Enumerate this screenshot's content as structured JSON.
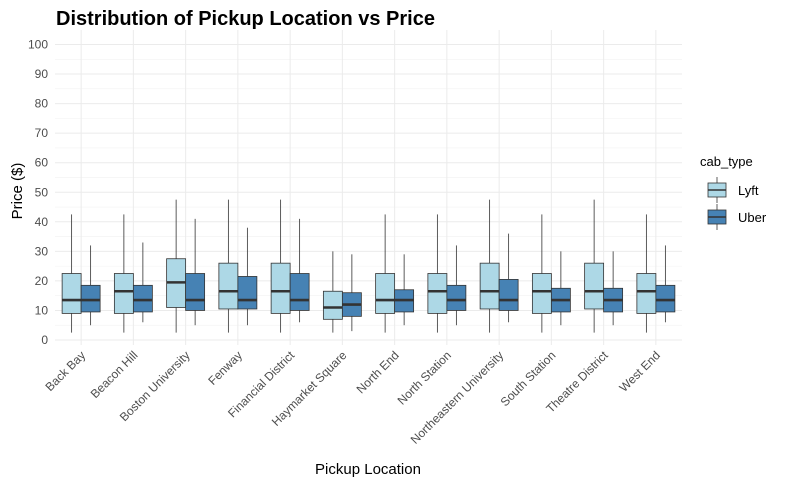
{
  "chart_data": {
    "type": "boxplot",
    "title": "Distribution of Pickup Location vs Price",
    "xlabel": "Pickup Location",
    "ylabel": "Price ($)",
    "ylim": [
      0,
      102
    ],
    "yticks": [
      0,
      10,
      20,
      30,
      40,
      50,
      60,
      70,
      80,
      90,
      100
    ],
    "grid": true,
    "legend": {
      "title": "cab_type",
      "position": "right"
    },
    "categories": [
      "Back Bay",
      "Beacon Hill",
      "Boston University",
      "Fenway",
      "Financial District",
      "Haymarket Square",
      "North End",
      "North Station",
      "Northeastern University",
      "South Station",
      "Theatre District",
      "West End"
    ],
    "series": [
      {
        "name": "Lyft",
        "color": "#add8e6",
        "boxes": [
          {
            "min": 2.5,
            "q1": 9,
            "median": 13.5,
            "q3": 22.5,
            "max": 42.5
          },
          {
            "min": 2.5,
            "q1": 9,
            "median": 16.5,
            "q3": 22.5,
            "max": 42.5
          },
          {
            "min": 2.5,
            "q1": 11,
            "median": 19.5,
            "q3": 27.5,
            "max": 47.5
          },
          {
            "min": 2.5,
            "q1": 10.5,
            "median": 16.5,
            "q3": 26,
            "max": 47.5
          },
          {
            "min": 2.5,
            "q1": 9,
            "median": 16.5,
            "q3": 26,
            "max": 47.5
          },
          {
            "min": 2.5,
            "q1": 7,
            "median": 11,
            "q3": 16.5,
            "max": 30
          },
          {
            "min": 2.5,
            "q1": 9,
            "median": 13.5,
            "q3": 22.5,
            "max": 42.5
          },
          {
            "min": 2.5,
            "q1": 9,
            "median": 16.5,
            "q3": 22.5,
            "max": 42.5
          },
          {
            "min": 2.5,
            "q1": 10.5,
            "median": 16.5,
            "q3": 26,
            "max": 47.5
          },
          {
            "min": 2.5,
            "q1": 9,
            "median": 16.5,
            "q3": 22.5,
            "max": 42.5
          },
          {
            "min": 2.5,
            "q1": 10.5,
            "median": 16.5,
            "q3": 26,
            "max": 47.5
          },
          {
            "min": 2.5,
            "q1": 9,
            "median": 16.5,
            "q3": 22.5,
            "max": 42.5
          }
        ]
      },
      {
        "name": "Uber",
        "color": "#4682b4",
        "boxes": [
          {
            "min": 5,
            "q1": 9.5,
            "median": 13.5,
            "q3": 18.5,
            "max": 32
          },
          {
            "min": 6,
            "q1": 9.5,
            "median": 13.5,
            "q3": 18.5,
            "max": 33
          },
          {
            "min": 5,
            "q1": 10,
            "median": 13.5,
            "q3": 22.5,
            "max": 41
          },
          {
            "min": 5,
            "q1": 10.5,
            "median": 13.5,
            "q3": 21.5,
            "max": 38
          },
          {
            "min": 6,
            "q1": 10,
            "median": 13.5,
            "q3": 22.5,
            "max": 41
          },
          {
            "min": 3,
            "q1": 8,
            "median": 12,
            "q3": 16,
            "max": 29
          },
          {
            "min": 5,
            "q1": 9.5,
            "median": 13.5,
            "q3": 17,
            "max": 29
          },
          {
            "min": 5,
            "q1": 10,
            "median": 13.5,
            "q3": 18.5,
            "max": 32
          },
          {
            "min": 6,
            "q1": 10,
            "median": 13.5,
            "q3": 20.5,
            "max": 36
          },
          {
            "min": 5,
            "q1": 9.5,
            "median": 13.5,
            "q3": 17.5,
            "max": 30
          },
          {
            "min": 5,
            "q1": 9.5,
            "median": 13.5,
            "q3": 17.5,
            "max": 30
          },
          {
            "min": 6,
            "q1": 9.5,
            "median": 13.5,
            "q3": 18.5,
            "max": 32
          }
        ]
      }
    ]
  }
}
